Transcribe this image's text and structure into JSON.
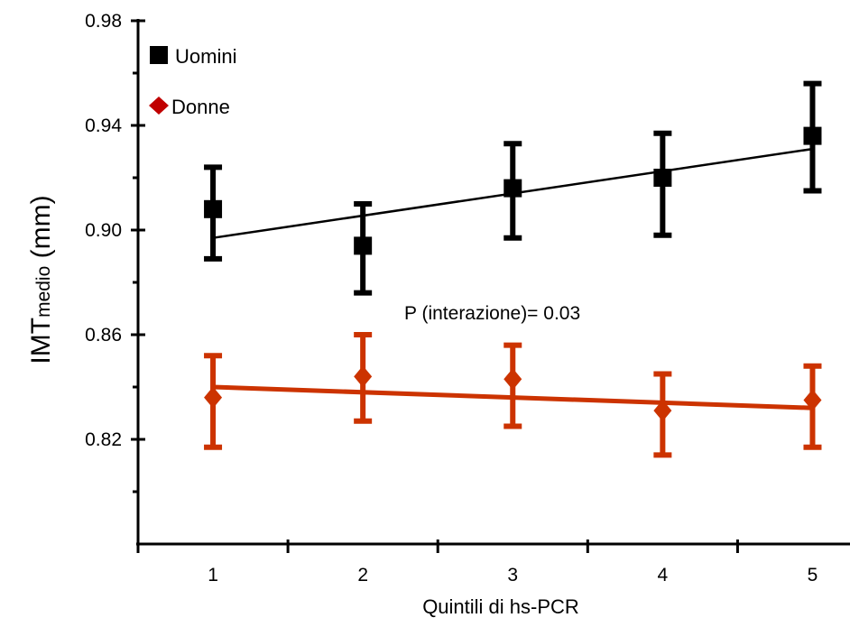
{
  "chart_data": {
    "type": "scatter",
    "x": [
      1,
      2,
      3,
      4,
      5
    ],
    "xlabel": "Quintili di hs-PCR",
    "ylabel": {
      "main": "IMT",
      "sub": "medio",
      "unit": " (mm)"
    },
    "xlim": [
      0.5,
      5.25
    ],
    "ylim": [
      0.78,
      0.98
    ],
    "yticks": [
      0.82,
      0.86,
      0.9,
      0.94,
      0.98
    ],
    "ytick_labels": [
      "0.82",
      "0.86",
      "0.90",
      "0.94",
      "0.98"
    ],
    "xtick_labels": [
      "1",
      "2",
      "3",
      "4",
      "5"
    ],
    "legend_position": "top-left",
    "annotation": "P (interazione)= 0.03",
    "series": [
      {
        "name": "Uomini",
        "marker": "square",
        "color": "#000000",
        "values": [
          0.908,
          0.894,
          0.916,
          0.92,
          0.936
        ],
        "err_low": [
          0.889,
          0.876,
          0.897,
          0.898,
          0.915
        ],
        "err_high": [
          0.924,
          0.91,
          0.933,
          0.937,
          0.956
        ],
        "trend": [
          0.897,
          0.931
        ]
      },
      {
        "name": "Donne",
        "marker": "diamond",
        "color": "#cc3300",
        "legend_color": "#c00000",
        "values": [
          0.836,
          0.844,
          0.843,
          0.831,
          0.835
        ],
        "err_low": [
          0.817,
          0.827,
          0.825,
          0.814,
          0.817
        ],
        "err_high": [
          0.852,
          0.86,
          0.856,
          0.845,
          0.848
        ],
        "trend": [
          0.84,
          0.832
        ]
      }
    ]
  }
}
